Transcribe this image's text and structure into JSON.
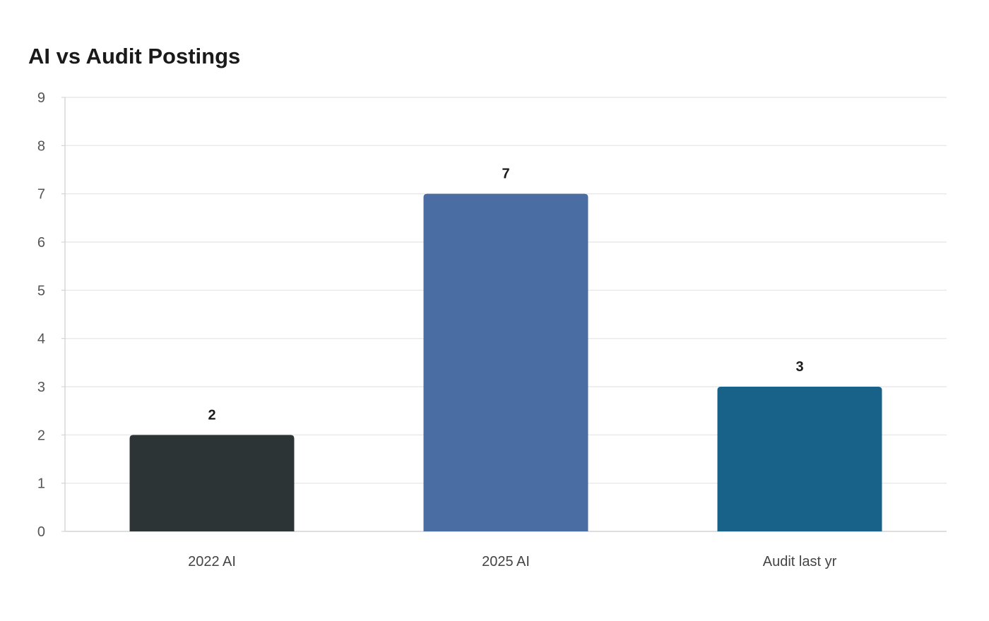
{
  "chart_data": {
    "type": "bar",
    "title": "AI vs Audit Postings",
    "xlabel": "",
    "ylabel": "",
    "categories": [
      "2022 AI",
      "2025 AI",
      "Audit last yr"
    ],
    "values": [
      2,
      7,
      3
    ],
    "colors": [
      "#2d3436",
      "#4a6da3",
      "#186189"
    ],
    "ylim": [
      0,
      9
    ],
    "yticks": [
      0,
      1,
      2,
      3,
      4,
      5,
      6,
      7,
      8,
      9
    ],
    "grid": true,
    "data_labels": true
  }
}
